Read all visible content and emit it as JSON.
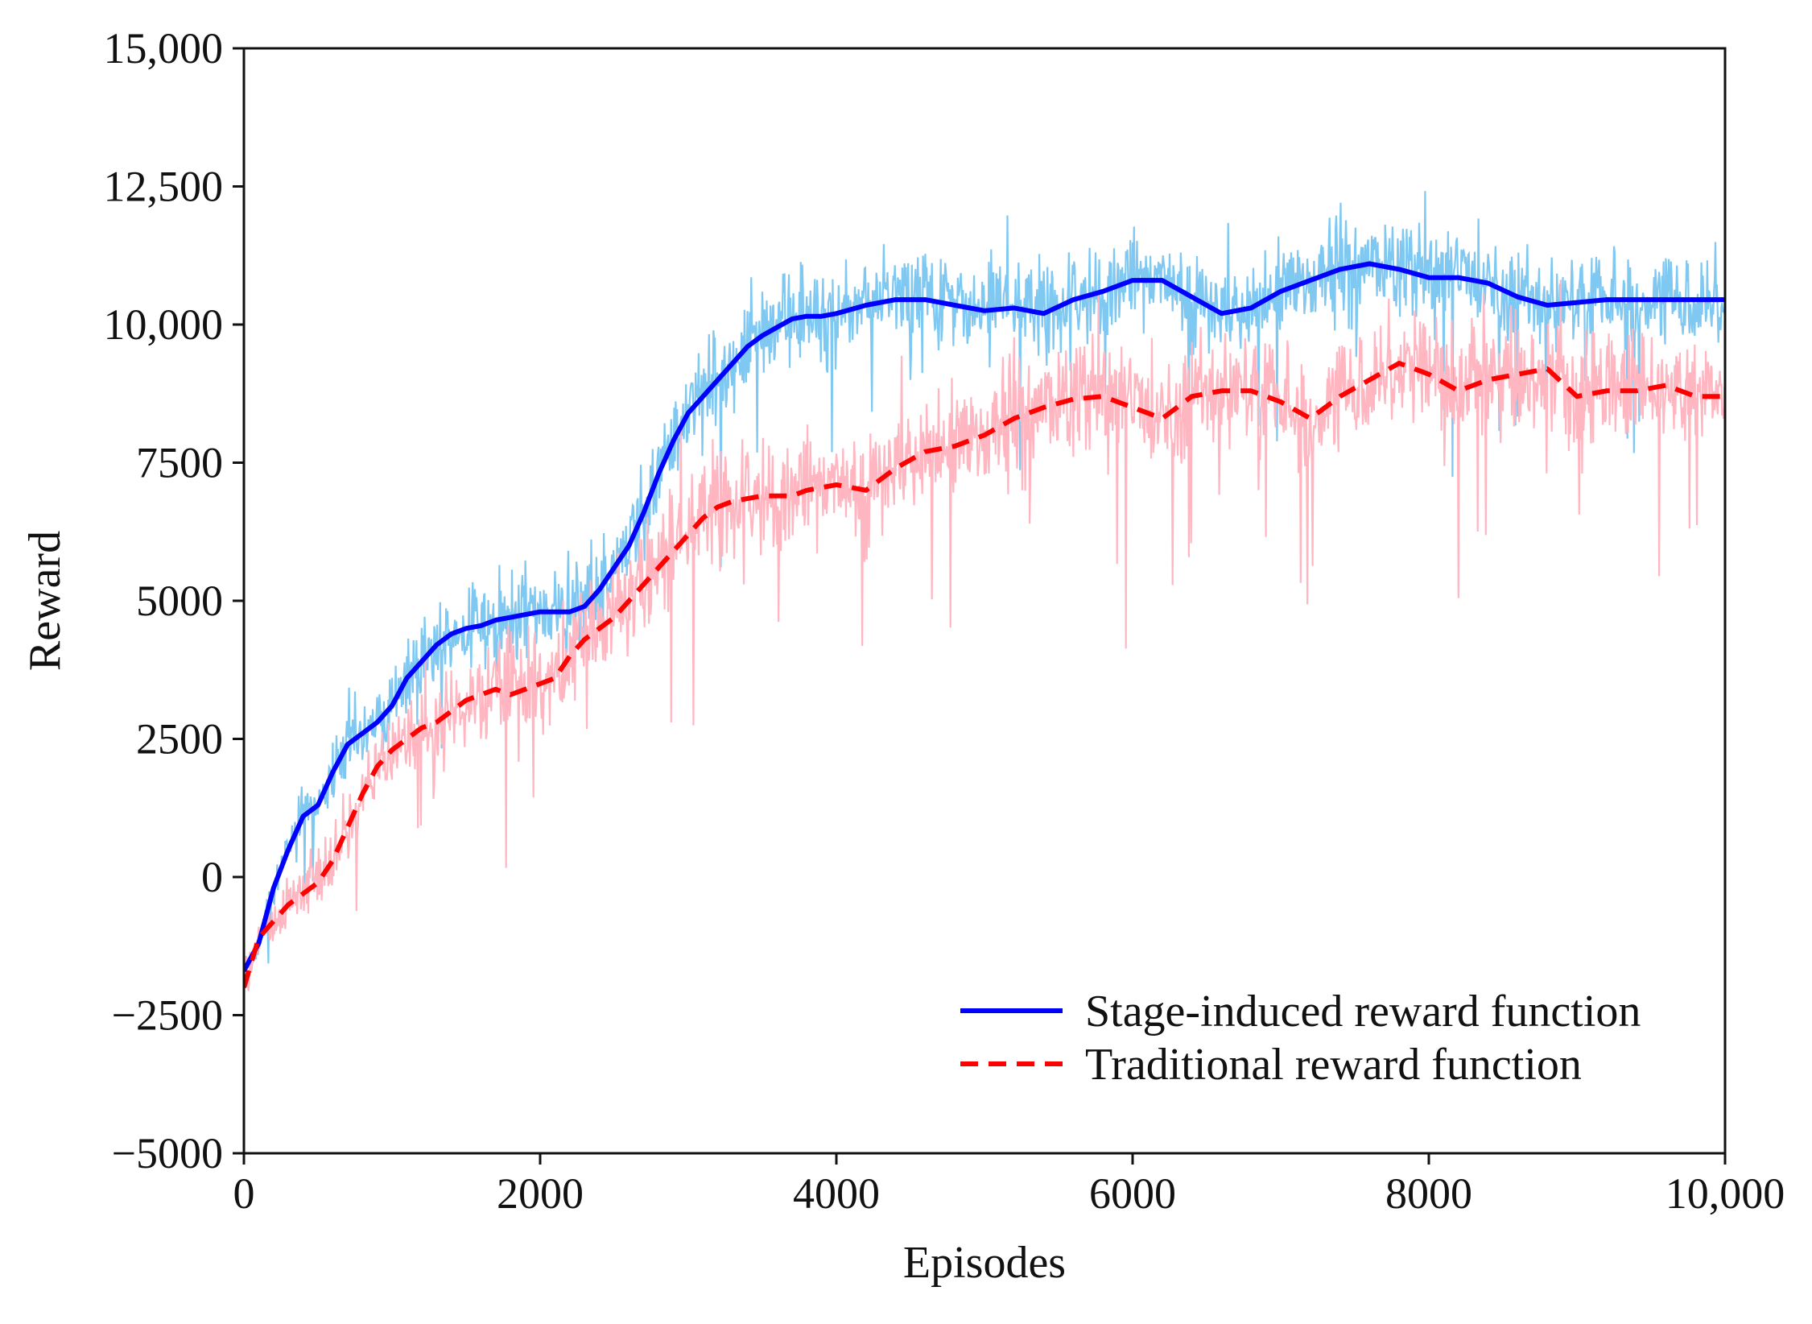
{
  "chart_data": {
    "type": "line",
    "title": "",
    "xlabel": "Episodes",
    "ylabel": "Reward",
    "xlim": [
      0,
      10000
    ],
    "ylim": [
      -5000,
      15000
    ],
    "grid": false,
    "legend_position": "bottom-right",
    "x_ticks": [
      {
        "value": 0,
        "label": "0"
      },
      {
        "value": 2000,
        "label": "2000"
      },
      {
        "value": 4000,
        "label": "4000"
      },
      {
        "value": 6000,
        "label": "6000"
      },
      {
        "value": 8000,
        "label": "8000"
      },
      {
        "value": 10000,
        "label": "10,000"
      }
    ],
    "y_ticks": [
      {
        "value": -5000,
        "label": "−5000"
      },
      {
        "value": -2500,
        "label": "−2500"
      },
      {
        "value": 0,
        "label": "0"
      },
      {
        "value": 2500,
        "label": "2500"
      },
      {
        "value": 5000,
        "label": "5000"
      },
      {
        "value": 7500,
        "label": "7500"
      },
      {
        "value": 10000,
        "label": "10,000"
      },
      {
        "value": 12500,
        "label": "12,500"
      },
      {
        "value": 15000,
        "label": "15,000"
      }
    ],
    "series": [
      {
        "name": "Stage-induced reward function",
        "color": "#0000ff",
        "raw_color": "#7ec8f2",
        "style": "solid",
        "noise": 900,
        "x": [
          0,
          100,
          200,
          300,
          400,
          500,
          600,
          700,
          800,
          900,
          1000,
          1100,
          1200,
          1300,
          1400,
          1500,
          1600,
          1700,
          1800,
          1900,
          2000,
          2100,
          2200,
          2300,
          2400,
          2500,
          2600,
          2700,
          2800,
          2900,
          3000,
          3100,
          3200,
          3300,
          3400,
          3500,
          3600,
          3700,
          3800,
          3900,
          4000,
          4200,
          4400,
          4600,
          4800,
          5000,
          5200,
          5400,
          5600,
          5800,
          6000,
          6200,
          6400,
          6600,
          6800,
          7000,
          7200,
          7400,
          7600,
          7800,
          8000,
          8200,
          8400,
          8600,
          8800,
          9000,
          9200,
          9400,
          9600,
          9800,
          10000
        ],
        "values": [
          -1700,
          -1200,
          -200,
          500,
          1100,
          1300,
          1900,
          2400,
          2600,
          2800,
          3100,
          3600,
          3900,
          4200,
          4400,
          4500,
          4550,
          4650,
          4700,
          4750,
          4800,
          4800,
          4800,
          4900,
          5200,
          5600,
          6000,
          6600,
          7300,
          7900,
          8400,
          8700,
          9000,
          9300,
          9600,
          9800,
          9950,
          10100,
          10150,
          10150,
          10200,
          10350,
          10450,
          10450,
          10350,
          10250,
          10300,
          10200,
          10450,
          10600,
          10800,
          10800,
          10500,
          10200,
          10300,
          10600,
          10800,
          11000,
          11100,
          11000,
          10850,
          10850,
          10750,
          10500,
          10350,
          10400,
          10450,
          10450,
          10450,
          10450,
          10450
        ]
      },
      {
        "name": "Traditional reward function",
        "color": "#ff0000",
        "raw_color": "#ffb6c1",
        "style": "dashed",
        "noise": 1100,
        "x": [
          0,
          100,
          200,
          300,
          400,
          500,
          600,
          700,
          800,
          900,
          1000,
          1100,
          1200,
          1300,
          1400,
          1500,
          1600,
          1700,
          1800,
          1900,
          2000,
          2100,
          2200,
          2300,
          2400,
          2500,
          2600,
          2700,
          2800,
          2900,
          3000,
          3100,
          3200,
          3300,
          3400,
          3500,
          3600,
          3700,
          3800,
          3900,
          4000,
          4200,
          4400,
          4600,
          4800,
          5000,
          5200,
          5400,
          5600,
          5800,
          6000,
          6200,
          6400,
          6600,
          6800,
          7000,
          7200,
          7400,
          7600,
          7800,
          8000,
          8200,
          8400,
          8600,
          8800,
          9000,
          9200,
          9400,
          9600,
          9800,
          10000
        ],
        "values": [
          -2000,
          -1100,
          -800,
          -500,
          -300,
          -100,
          300,
          900,
          1500,
          2000,
          2300,
          2500,
          2700,
          2800,
          3000,
          3200,
          3300,
          3400,
          3300,
          3400,
          3500,
          3600,
          4000,
          4300,
          4500,
          4700,
          5000,
          5300,
          5600,
          5900,
          6200,
          6500,
          6700,
          6800,
          6850,
          6900,
          6900,
          6900,
          7000,
          7050,
          7100,
          7000,
          7400,
          7700,
          7800,
          8000,
          8300,
          8500,
          8650,
          8700,
          8500,
          8300,
          8700,
          8800,
          8800,
          8600,
          8300,
          8700,
          9000,
          9300,
          9100,
          8800,
          9000,
          9100,
          9200,
          8700,
          8800,
          8800,
          8900,
          8700,
          8700
        ]
      }
    ]
  }
}
